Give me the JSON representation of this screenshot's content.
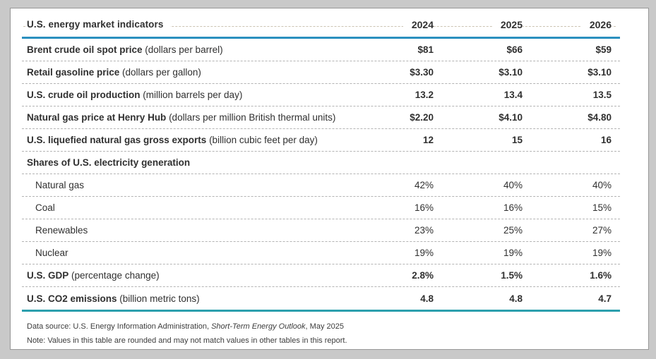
{
  "chart_data": {
    "type": "table",
    "title": "U.S. energy market indicators",
    "columns": [
      "2024",
      "2025",
      "2026"
    ],
    "rows": [
      {
        "label": "Brent crude oil spot price",
        "unit": "(dollars per barrel)",
        "values": [
          "$81",
          "$66",
          "$59"
        ],
        "style": "bold"
      },
      {
        "label": "Retail gasoline price",
        "unit": "(dollars per gallon)",
        "values": [
          "$3.30",
          "$3.10",
          "$3.10"
        ],
        "style": "bold"
      },
      {
        "label": "U.S. crude oil production",
        "unit": "(million barrels per day)",
        "values": [
          "13.2",
          "13.4",
          "13.5"
        ],
        "style": "bold"
      },
      {
        "label": "Natural gas price at Henry Hub",
        "unit": "(dollars per million British thermal units)",
        "values": [
          "$2.20",
          "$4.10",
          "$4.80"
        ],
        "style": "bold"
      },
      {
        "label": "U.S. liquefied natural gas gross exports",
        "unit": "(billion cubic feet per day)",
        "values": [
          "12",
          "15",
          "16"
        ],
        "style": "bold"
      },
      {
        "label": "Shares of U.S. electricity generation",
        "unit": "",
        "values": [],
        "style": "section"
      },
      {
        "label": "Natural gas",
        "unit": "",
        "values": [
          "42%",
          "40%",
          "40%"
        ],
        "style": "sub"
      },
      {
        "label": "Coal",
        "unit": "",
        "values": [
          "16%",
          "16%",
          "15%"
        ],
        "style": "sub"
      },
      {
        "label": "Renewables",
        "unit": "",
        "values": [
          "23%",
          "25%",
          "27%"
        ],
        "style": "sub"
      },
      {
        "label": "Nuclear",
        "unit": "",
        "values": [
          "19%",
          "19%",
          "19%"
        ],
        "style": "sub"
      },
      {
        "label": "U.S. GDP",
        "unit": "(percentage change)",
        "values": [
          "2.8%",
          "1.5%",
          "1.6%"
        ],
        "style": "bold"
      },
      {
        "label": "U.S. CO2 emissions",
        "unit": "(billion metric tons)",
        "values": [
          "4.8",
          "4.8",
          "4.7"
        ],
        "style": "bold"
      }
    ]
  },
  "footer": {
    "source_prefix": "Data source: U.S. Energy Information Administration, ",
    "source_italic": "Short-Term Energy Outlook",
    "source_suffix": ", May 2025",
    "note": "Note: Values in this table are rounded and may not match values in other tables in this report."
  },
  "colors": {
    "header_rule": "#2b90bf",
    "bottom_rule": "#2b9fad",
    "row_dash": "#b4b4b4",
    "leader_dash": "#ccc4b2",
    "text": "#303030",
    "page_background": "#c9c9c9",
    "card_border": "#979797"
  }
}
